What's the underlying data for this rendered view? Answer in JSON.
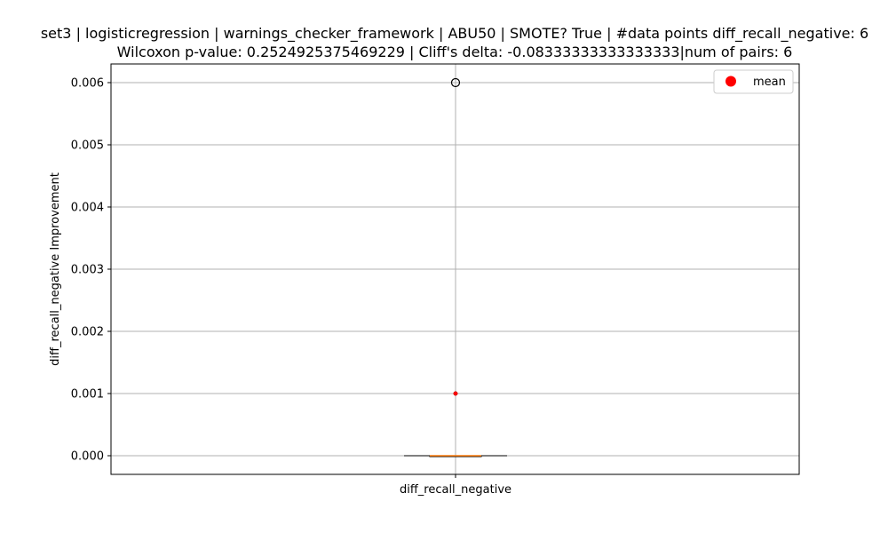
{
  "chart_data": {
    "type": "box",
    "title_line1": "set3 | logisticregression | warnings_checker_framework | ABU50 | SMOTE? True | #data points diff_recall_negative: 6",
    "title_line2": "Wilcoxon p-value: 0.2524925375469229 | Cliff's delta: -0.08333333333333333|num of pairs: 6",
    "ylabel": "diff_recall_negative Improvement",
    "categories": [
      "diff_recall_negative"
    ],
    "ylim": [
      -0.0003,
      0.0063
    ],
    "yticks": [
      0.0,
      0.001,
      0.002,
      0.003,
      0.004,
      0.005,
      0.006
    ],
    "ytick_labels": [
      "0.000",
      "0.001",
      "0.002",
      "0.003",
      "0.004",
      "0.005",
      "0.006"
    ],
    "grid": true,
    "box": {
      "q1": 0.0,
      "median": 0.0,
      "q3": 0.0,
      "whisker_low": 0.0,
      "whisker_high": 0.0,
      "outliers": [
        0.006
      ],
      "mean": 0.001
    },
    "legend": {
      "position": "top-right",
      "entries": [
        {
          "label": "mean",
          "color": "#ff0000",
          "marker": "circle"
        }
      ]
    },
    "colors": {
      "box": "#000000",
      "median": "#ff7f0e",
      "mean": "#ff0000",
      "grid": "#b0b0b0"
    }
  }
}
